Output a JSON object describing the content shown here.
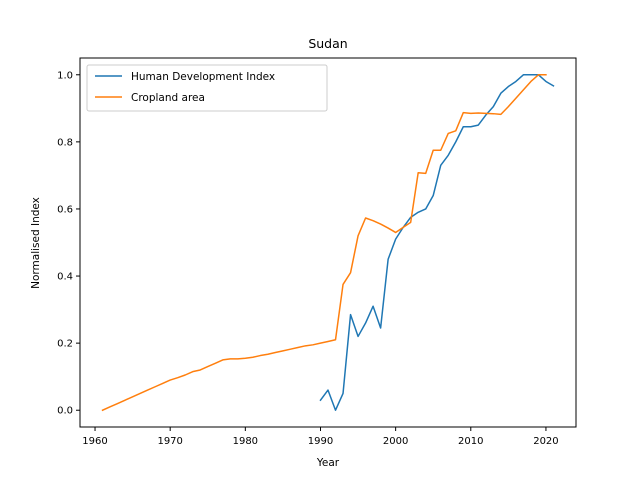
{
  "chart_data": {
    "type": "line",
    "title": "Sudan",
    "xlabel": "Year",
    "ylabel": "Normalised Index",
    "xlim": [
      1958,
      2024
    ],
    "ylim": [
      -0.05,
      1.05
    ],
    "xticks": [
      1960,
      1970,
      1980,
      1990,
      2000,
      2010,
      2020
    ],
    "yticks": [
      0.0,
      0.2,
      0.4,
      0.6,
      0.8,
      1.0
    ],
    "xtick_labels": [
      "1960",
      "1970",
      "1980",
      "1990",
      "2000",
      "2010",
      "2020"
    ],
    "ytick_labels": [
      "0.0",
      "0.2",
      "0.4",
      "0.6",
      "0.8",
      "1.0"
    ],
    "grid": false,
    "legend_position": "top-left",
    "series": [
      {
        "name": "Human Development Index",
        "color": "#1f77b4",
        "points": [
          [
            1990,
            0.03
          ],
          [
            1991,
            0.06
          ],
          [
            1992,
            0.0
          ],
          [
            1993,
            0.05
          ],
          [
            1994,
            0.285
          ],
          [
            1995,
            0.22
          ],
          [
            1996,
            0.26
          ],
          [
            1997,
            0.31
          ],
          [
            1998,
            0.245
          ],
          [
            1999,
            0.45
          ],
          [
            2000,
            0.51
          ],
          [
            2001,
            0.545
          ],
          [
            2002,
            0.575
          ],
          [
            2003,
            0.59
          ],
          [
            2004,
            0.6
          ],
          [
            2005,
            0.64
          ],
          [
            2006,
            0.73
          ],
          [
            2007,
            0.76
          ],
          [
            2008,
            0.8
          ],
          [
            2009,
            0.845
          ],
          [
            2010,
            0.845
          ],
          [
            2011,
            0.85
          ],
          [
            2012,
            0.88
          ],
          [
            2013,
            0.905
          ],
          [
            2014,
            0.945
          ],
          [
            2015,
            0.965
          ],
          [
            2016,
            0.98
          ],
          [
            2017,
            1.0
          ],
          [
            2018,
            1.0
          ],
          [
            2019,
            1.0
          ],
          [
            2020,
            0.98
          ],
          [
            2021,
            0.967
          ]
        ]
      },
      {
        "name": "Cropland area",
        "color": "#ff7f0e",
        "points": [
          [
            1961,
            0.0
          ],
          [
            1962,
            0.01
          ],
          [
            1963,
            0.02
          ],
          [
            1964,
            0.03
          ],
          [
            1965,
            0.04
          ],
          [
            1966,
            0.05
          ],
          [
            1967,
            0.06
          ],
          [
            1968,
            0.07
          ],
          [
            1969,
            0.08
          ],
          [
            1970,
            0.09
          ],
          [
            1971,
            0.097
          ],
          [
            1972,
            0.105
          ],
          [
            1973,
            0.115
          ],
          [
            1974,
            0.12
          ],
          [
            1975,
            0.13
          ],
          [
            1976,
            0.14
          ],
          [
            1977,
            0.15
          ],
          [
            1978,
            0.153
          ],
          [
            1979,
            0.153
          ],
          [
            1980,
            0.155
          ],
          [
            1981,
            0.158
          ],
          [
            1982,
            0.163
          ],
          [
            1983,
            0.167
          ],
          [
            1984,
            0.172
          ],
          [
            1985,
            0.177
          ],
          [
            1986,
            0.182
          ],
          [
            1987,
            0.187
          ],
          [
            1988,
            0.192
          ],
          [
            1989,
            0.195
          ],
          [
            1990,
            0.2
          ],
          [
            1991,
            0.205
          ],
          [
            1992,
            0.21
          ],
          [
            1993,
            0.375
          ],
          [
            1994,
            0.41
          ],
          [
            1995,
            0.52
          ],
          [
            1996,
            0.573
          ],
          [
            1997,
            0.565
          ],
          [
            1998,
            0.555
          ],
          [
            1999,
            0.543
          ],
          [
            2000,
            0.53
          ],
          [
            2001,
            0.545
          ],
          [
            2002,
            0.56
          ],
          [
            2003,
            0.708
          ],
          [
            2004,
            0.706
          ],
          [
            2005,
            0.775
          ],
          [
            2006,
            0.775
          ],
          [
            2007,
            0.825
          ],
          [
            2008,
            0.833
          ],
          [
            2009,
            0.887
          ],
          [
            2010,
            0.885
          ],
          [
            2011,
            0.886
          ],
          [
            2012,
            0.885
          ],
          [
            2013,
            0.884
          ],
          [
            2014,
            0.882
          ],
          [
            2015,
            0.905
          ],
          [
            2016,
            0.93
          ],
          [
            2017,
            0.955
          ],
          [
            2018,
            0.98
          ],
          [
            2019,
            1.0
          ],
          [
            2020,
            1.0
          ]
        ]
      }
    ]
  }
}
